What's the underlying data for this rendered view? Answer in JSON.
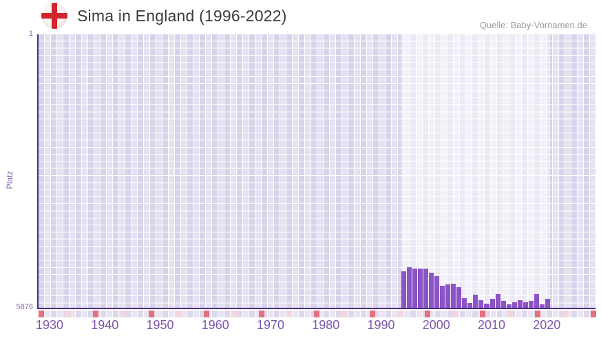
{
  "header": {
    "title": "Sima in England (1996-2022)",
    "source": "Quelle: Baby-Vornamen.de"
  },
  "chart_data": {
    "type": "bar",
    "title": "Sima in England (1996-2022)",
    "ylabel": "Platz",
    "xlabel": "",
    "y_axis": {
      "top_label": "1",
      "bottom_label": "5876",
      "min": 1,
      "max": 5876,
      "inverted": true,
      "note": "rank scale, 1 = best at top; bar height grows toward better rank"
    },
    "x_ticks": [
      1930,
      1940,
      1950,
      1960,
      1970,
      1980,
      1990,
      2000,
      2010,
      2020
    ],
    "x_range": [
      1929,
      2031
    ],
    "highlight_band_years": [
      1996,
      2022
    ],
    "grid": true,
    "legend": false,
    "series": [
      {
        "name": "Platz",
        "x": [
          1996,
          1997,
          1998,
          1999,
          2000,
          2001,
          2002,
          2003,
          2004,
          2005,
          2006,
          2007,
          2008,
          2009,
          2010,
          2011,
          2012,
          2013,
          2014,
          2015,
          2016,
          2017,
          2018,
          2019,
          2020,
          2021,
          2022
        ],
        "values": [
          5100,
          5000,
          5030,
          5030,
          5040,
          5130,
          5200,
          5410,
          5380,
          5360,
          5440,
          5670,
          5770,
          5600,
          5715,
          5790,
          5685,
          5580,
          5730,
          5805,
          5760,
          5715,
          5760,
          5730,
          5580,
          5805,
          5690
        ]
      }
    ],
    "colors": {
      "bar": "#8c53c6",
      "axis": "#4a2c82",
      "grid_cell": "#e5e1f0",
      "highlight_band": "rgba(255,255,255,0.52)",
      "tick_label": "#7c58ab",
      "marker_decade": "#e2707e",
      "marker_half_decade": "#f5d6dd",
      "flag_cross": "#d2242c",
      "title_text": "#3a3a3a",
      "source_text": "#9b9b9b"
    }
  }
}
